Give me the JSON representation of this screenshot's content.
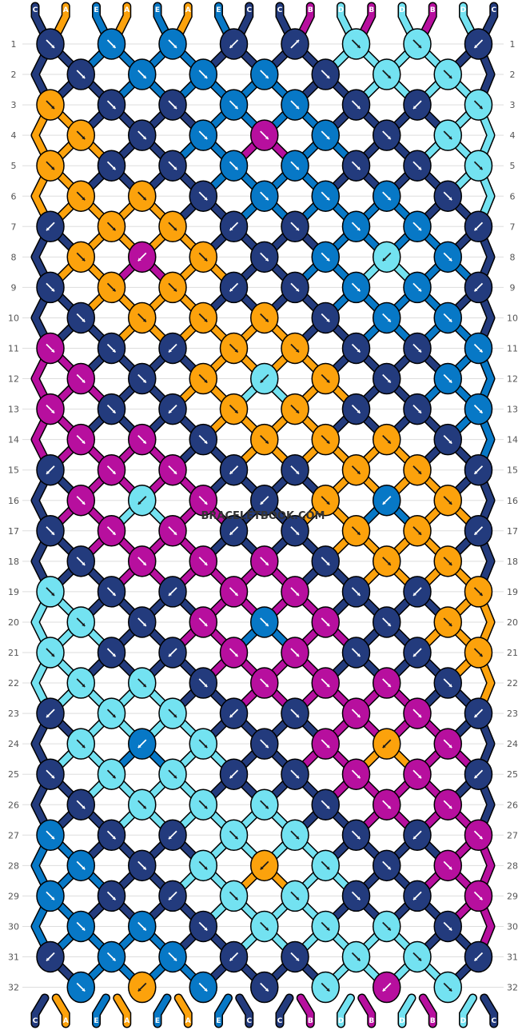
{
  "watermark": "BRACELETBOOK.COM",
  "colors": {
    "A": "#fca20c",
    "B": "#b70f9e",
    "C": "#233b7d",
    "D": "#73e2f1",
    "E": "#0778c6"
  },
  "strands_top": [
    "C",
    "A",
    "E",
    "A",
    "E",
    "A",
    "E",
    "C",
    "C",
    "B",
    "D",
    "B",
    "D",
    "B",
    "D",
    "C"
  ],
  "strands_bottom": [
    "C",
    "A",
    "E",
    "A",
    "E",
    "A",
    "E",
    "C",
    "C",
    "B",
    "D",
    "B",
    "D",
    "B",
    "D",
    "C"
  ],
  "row_labels": [
    "1",
    "2",
    "3",
    "4",
    "5",
    "6",
    "7",
    "8",
    "9",
    "10",
    "11",
    "12",
    "13",
    "14",
    "15",
    "16",
    "17",
    "18",
    "19",
    "20",
    "21",
    "22",
    "23",
    "24",
    "25",
    "26",
    "27",
    "28",
    "29",
    "30",
    "31",
    "32"
  ],
  "knots": [
    [
      "C",
      "E",
      "E",
      "C",
      "C",
      "D",
      "D",
      "C"
    ],
    [
      "C",
      "E",
      "E",
      "E",
      "C",
      "D",
      "D"
    ],
    [
      "A",
      "C",
      "C",
      "E",
      "E",
      "C",
      "C",
      "D"
    ],
    [
      "A",
      "C",
      "E",
      "B",
      "E",
      "C",
      "D"
    ],
    [
      "A",
      "C",
      "C",
      "E",
      "E",
      "C",
      "C",
      "D"
    ],
    [
      "A",
      "A",
      "C",
      "E",
      "E",
      "E",
      "C"
    ],
    [
      "C",
      "A",
      "A",
      "C",
      "C",
      "E",
      "E",
      "C"
    ],
    [
      "A",
      "B",
      "A",
      "C",
      "E",
      "D",
      "E"
    ],
    [
      "C",
      "A",
      "A",
      "C",
      "C",
      "E",
      "E",
      "C"
    ],
    [
      "C",
      "A",
      "A",
      "A",
      "C",
      "E",
      "E"
    ],
    [
      "B",
      "C",
      "C",
      "A",
      "A",
      "C",
      "C",
      "E"
    ],
    [
      "B",
      "C",
      "A",
      "D",
      "A",
      "C",
      "E"
    ],
    [
      "B",
      "C",
      "C",
      "A",
      "A",
      "C",
      "C",
      "E"
    ],
    [
      "B",
      "B",
      "C",
      "A",
      "A",
      "A",
      "C"
    ],
    [
      "C",
      "B",
      "B",
      "C",
      "C",
      "A",
      "A",
      "C"
    ],
    [
      "B",
      "D",
      "B",
      "C",
      "A",
      "E",
      "A"
    ],
    [
      "C",
      "B",
      "B",
      "C",
      "C",
      "A",
      "A",
      "C"
    ],
    [
      "C",
      "B",
      "B",
      "B",
      "C",
      "A",
      "A"
    ],
    [
      "D",
      "C",
      "C",
      "B",
      "B",
      "C",
      "C",
      "A"
    ],
    [
      "D",
      "C",
      "B",
      "E",
      "B",
      "C",
      "A"
    ],
    [
      "D",
      "C",
      "C",
      "B",
      "B",
      "C",
      "C",
      "A"
    ],
    [
      "D",
      "D",
      "C",
      "B",
      "B",
      "B",
      "C"
    ],
    [
      "C",
      "D",
      "D",
      "C",
      "C",
      "B",
      "B",
      "C"
    ],
    [
      "D",
      "E",
      "D",
      "C",
      "B",
      "A",
      "B"
    ],
    [
      "C",
      "D",
      "D",
      "C",
      "C",
      "B",
      "B",
      "C"
    ],
    [
      "C",
      "D",
      "D",
      "D",
      "C",
      "B",
      "B"
    ],
    [
      "E",
      "C",
      "C",
      "D",
      "D",
      "C",
      "C",
      "B"
    ],
    [
      "E",
      "C",
      "D",
      "A",
      "D",
      "C",
      "B"
    ],
    [
      "E",
      "C",
      "C",
      "D",
      "D",
      "C",
      "C",
      "B"
    ],
    [
      "E",
      "E",
      "C",
      "D",
      "D",
      "D",
      "C"
    ],
    [
      "C",
      "E",
      "E",
      "C",
      "C",
      "D",
      "D",
      "C"
    ],
    [
      "E",
      "A",
      "E",
      "C",
      "D",
      "B",
      "D"
    ]
  ],
  "arrows": [
    [
      "se",
      "se",
      "se",
      "sw",
      "ne",
      "se",
      "se",
      "sw"
    ],
    [
      "se",
      "se",
      "se",
      "se",
      "se",
      "se",
      "se"
    ],
    [
      "se",
      "se",
      "se",
      "se",
      "se",
      "se",
      "sw",
      "se"
    ],
    [
      "se",
      "se",
      "se",
      "se",
      "se",
      "se",
      "se"
    ],
    [
      "se",
      "se",
      "se",
      "se",
      "se",
      "se",
      "se",
      "se"
    ],
    [
      "se",
      "se",
      "se",
      "se",
      "se",
      "se",
      "se"
    ],
    [
      "sw",
      "se",
      "se",
      "sw",
      "se",
      "se",
      "se",
      "sw"
    ],
    [
      "se",
      "sw",
      "se",
      "se",
      "se",
      "sw",
      "se"
    ],
    [
      "se",
      "se",
      "se",
      "sw",
      "se",
      "se",
      "se",
      "sw"
    ],
    [
      "se",
      "se",
      "se",
      "se",
      "se",
      "se",
      "se"
    ],
    [
      "se",
      "se",
      "sw",
      "se",
      "se",
      "se",
      "se",
      "se"
    ],
    [
      "se",
      "se",
      "se",
      "sw",
      "se",
      "se",
      "se"
    ],
    [
      "se",
      "se",
      "sw",
      "se",
      "se",
      "se",
      "se",
      "se"
    ],
    [
      "se",
      "se",
      "se",
      "se",
      "se",
      "se",
      "se"
    ],
    [
      "sw",
      "se",
      "se",
      "sw",
      "se",
      "se",
      "se",
      "sw"
    ],
    [
      "se",
      "sw",
      "se",
      "sw",
      "se",
      "sw",
      "se"
    ],
    [
      "se",
      "se",
      "se",
      "sw",
      "se",
      "se",
      "se",
      "sw"
    ],
    [
      "se",
      "se",
      "se",
      "se",
      "se",
      "se",
      "se"
    ],
    [
      "se",
      "se",
      "sw",
      "se",
      "se",
      "se",
      "sw",
      "se"
    ],
    [
      "se",
      "se",
      "se",
      "se",
      "se",
      "se",
      "se"
    ],
    [
      "se",
      "se",
      "sw",
      "se",
      "se",
      "se",
      "sw",
      "se"
    ],
    [
      "se",
      "se",
      "se",
      "se",
      "se",
      "se",
      "se"
    ],
    [
      "sw",
      "se",
      "se",
      "sw",
      "se",
      "se",
      "se",
      "sw"
    ],
    [
      "se",
      "sw",
      "se",
      "se",
      "se",
      "sw",
      "se"
    ],
    [
      "se",
      "se",
      "se",
      "sw",
      "se",
      "se",
      "se",
      "sw"
    ],
    [
      "se",
      "se",
      "se",
      "se",
      "se",
      "se",
      "se"
    ],
    [
      "se",
      "se",
      "sw",
      "se",
      "se",
      "se",
      "sw",
      "se"
    ],
    [
      "se",
      "se",
      "se",
      "sw",
      "se",
      "se",
      "se"
    ],
    [
      "se",
      "se",
      "sw",
      "se",
      "se",
      "se",
      "sw",
      "se"
    ],
    [
      "se",
      "se",
      "se",
      "se",
      "se",
      "se",
      "se"
    ],
    [
      "sw",
      "se",
      "se",
      "sw",
      "se",
      "se",
      "se",
      "sw"
    ],
    [
      "se",
      "sw",
      "se",
      "se",
      "se",
      "sw",
      "se"
    ]
  ]
}
